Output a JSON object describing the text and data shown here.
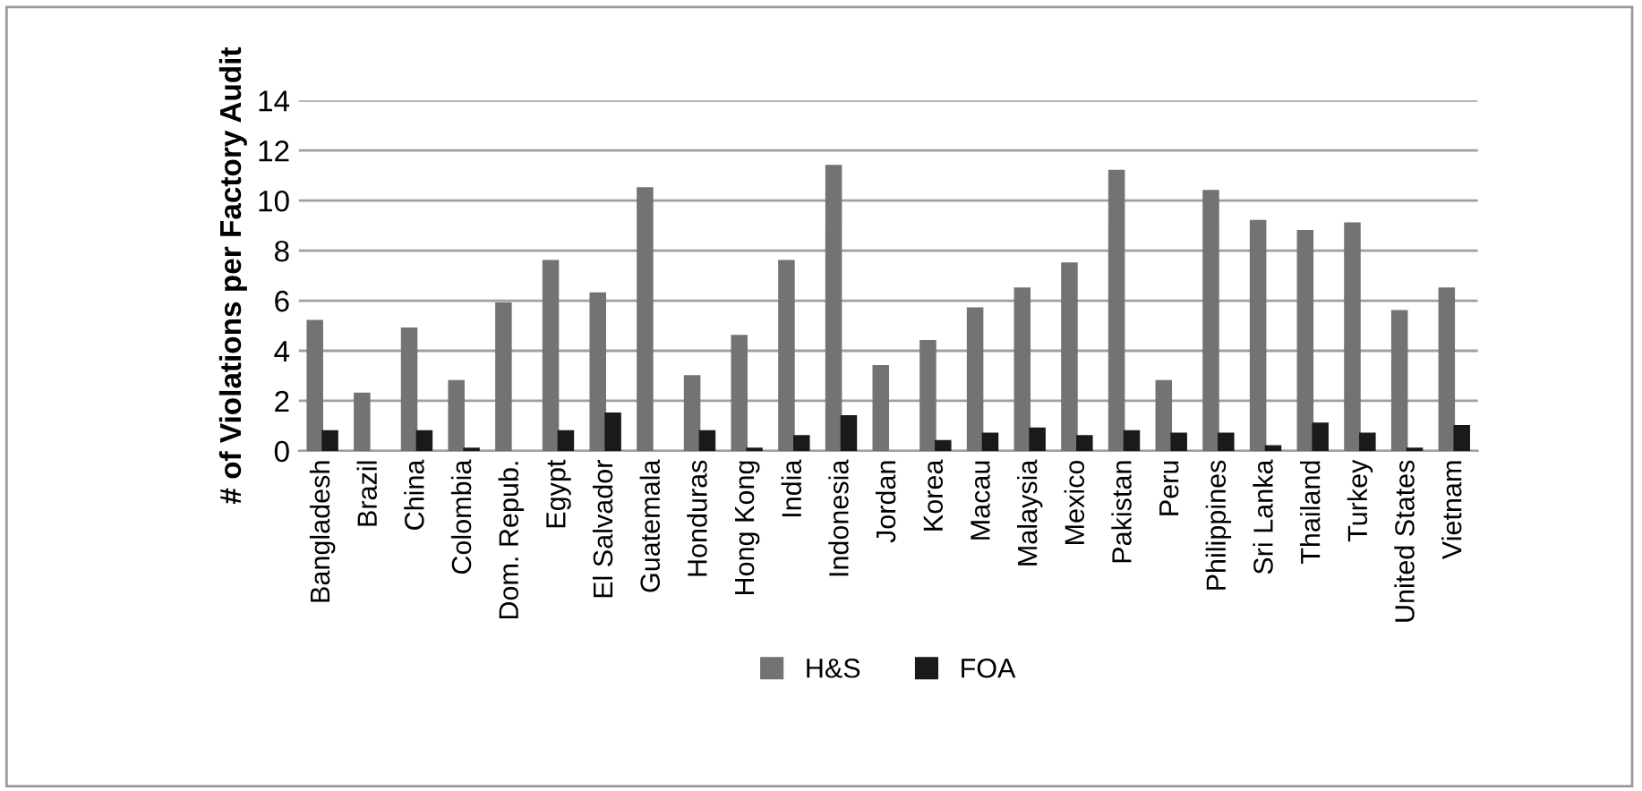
{
  "chart_data": {
    "type": "bar",
    "ylabel": "# of Violations per Factory Audit",
    "categories": [
      "Bangladesh",
      "Brazil",
      "China",
      "Colombia",
      "Dom. Repub.",
      "Egypt",
      "El Salvador",
      "Guatemala",
      "Honduras",
      "Hong Kong",
      "India",
      "Indonesia",
      "Jordan",
      "Korea",
      "Macau",
      "Malaysia",
      "Mexico",
      "Pakistan",
      "Peru",
      "Philippines",
      "Sri Lanka",
      "Thailand",
      "Turkey",
      "United States",
      "Vietnam"
    ],
    "series": [
      {
        "name": "H&S",
        "color": "#737373",
        "values": [
          5.2,
          2.3,
          4.9,
          2.8,
          5.9,
          7.6,
          6.3,
          10.5,
          3.0,
          4.6,
          7.6,
          11.4,
          3.4,
          4.4,
          5.7,
          6.5,
          7.5,
          11.2,
          2.8,
          10.4,
          9.2,
          8.8,
          9.1,
          5.6,
          6.5
        ]
      },
      {
        "name": "FOA",
        "color": "#1a1a1a",
        "values": [
          0.8,
          null,
          0.8,
          0.1,
          null,
          0.8,
          1.5,
          null,
          0.8,
          0.1,
          0.6,
          1.4,
          null,
          0.4,
          0.7,
          0.9,
          0.6,
          0.8,
          0.7,
          0.7,
          0.2,
          1.1,
          0.7,
          0.1,
          1.0
        ]
      }
    ],
    "ylim": [
      0,
      14
    ],
    "yticks": [
      0,
      2,
      4,
      6,
      8,
      10,
      12,
      14
    ],
    "grid": "y",
    "legend": "bottom"
  }
}
